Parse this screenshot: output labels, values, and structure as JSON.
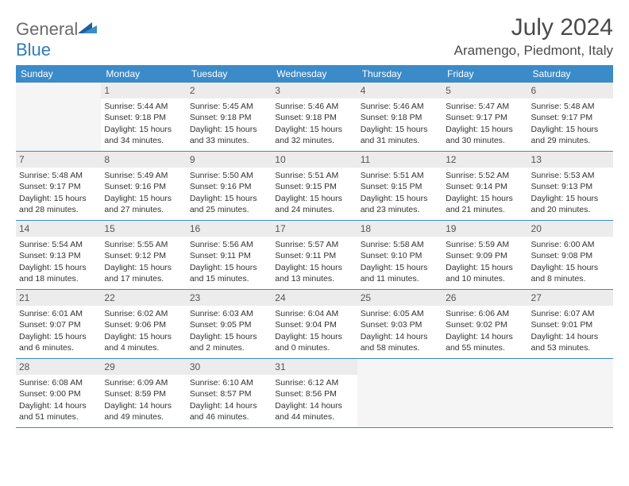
{
  "brand": {
    "name_gray": "General",
    "name_blue": "Blue"
  },
  "title": "July 2024",
  "location": "Aramengo, Piedmont, Italy",
  "colors": {
    "header_bar": "#3b8bc9",
    "daynum_bg": "#ececec",
    "week_border": "#3b8bc9",
    "text": "#333333",
    "title_text": "#4a4a4a",
    "logo_gray": "#6b6b6b",
    "logo_blue": "#2f7bbf",
    "empty_bg": "#f5f5f5"
  },
  "weekdays": [
    "Sunday",
    "Monday",
    "Tuesday",
    "Wednesday",
    "Thursday",
    "Friday",
    "Saturday"
  ],
  "weeks": [
    [
      null,
      {
        "n": "1",
        "sunrise": "Sunrise: 5:44 AM",
        "sunset": "Sunset: 9:18 PM",
        "d1": "Daylight: 15 hours",
        "d2": "and 34 minutes."
      },
      {
        "n": "2",
        "sunrise": "Sunrise: 5:45 AM",
        "sunset": "Sunset: 9:18 PM",
        "d1": "Daylight: 15 hours",
        "d2": "and 33 minutes."
      },
      {
        "n": "3",
        "sunrise": "Sunrise: 5:46 AM",
        "sunset": "Sunset: 9:18 PM",
        "d1": "Daylight: 15 hours",
        "d2": "and 32 minutes."
      },
      {
        "n": "4",
        "sunrise": "Sunrise: 5:46 AM",
        "sunset": "Sunset: 9:18 PM",
        "d1": "Daylight: 15 hours",
        "d2": "and 31 minutes."
      },
      {
        "n": "5",
        "sunrise": "Sunrise: 5:47 AM",
        "sunset": "Sunset: 9:17 PM",
        "d1": "Daylight: 15 hours",
        "d2": "and 30 minutes."
      },
      {
        "n": "6",
        "sunrise": "Sunrise: 5:48 AM",
        "sunset": "Sunset: 9:17 PM",
        "d1": "Daylight: 15 hours",
        "d2": "and 29 minutes."
      }
    ],
    [
      {
        "n": "7",
        "sunrise": "Sunrise: 5:48 AM",
        "sunset": "Sunset: 9:17 PM",
        "d1": "Daylight: 15 hours",
        "d2": "and 28 minutes."
      },
      {
        "n": "8",
        "sunrise": "Sunrise: 5:49 AM",
        "sunset": "Sunset: 9:16 PM",
        "d1": "Daylight: 15 hours",
        "d2": "and 27 minutes."
      },
      {
        "n": "9",
        "sunrise": "Sunrise: 5:50 AM",
        "sunset": "Sunset: 9:16 PM",
        "d1": "Daylight: 15 hours",
        "d2": "and 25 minutes."
      },
      {
        "n": "10",
        "sunrise": "Sunrise: 5:51 AM",
        "sunset": "Sunset: 9:15 PM",
        "d1": "Daylight: 15 hours",
        "d2": "and 24 minutes."
      },
      {
        "n": "11",
        "sunrise": "Sunrise: 5:51 AM",
        "sunset": "Sunset: 9:15 PM",
        "d1": "Daylight: 15 hours",
        "d2": "and 23 minutes."
      },
      {
        "n": "12",
        "sunrise": "Sunrise: 5:52 AM",
        "sunset": "Sunset: 9:14 PM",
        "d1": "Daylight: 15 hours",
        "d2": "and 21 minutes."
      },
      {
        "n": "13",
        "sunrise": "Sunrise: 5:53 AM",
        "sunset": "Sunset: 9:13 PM",
        "d1": "Daylight: 15 hours",
        "d2": "and 20 minutes."
      }
    ],
    [
      {
        "n": "14",
        "sunrise": "Sunrise: 5:54 AM",
        "sunset": "Sunset: 9:13 PM",
        "d1": "Daylight: 15 hours",
        "d2": "and 18 minutes."
      },
      {
        "n": "15",
        "sunrise": "Sunrise: 5:55 AM",
        "sunset": "Sunset: 9:12 PM",
        "d1": "Daylight: 15 hours",
        "d2": "and 17 minutes."
      },
      {
        "n": "16",
        "sunrise": "Sunrise: 5:56 AM",
        "sunset": "Sunset: 9:11 PM",
        "d1": "Daylight: 15 hours",
        "d2": "and 15 minutes."
      },
      {
        "n": "17",
        "sunrise": "Sunrise: 5:57 AM",
        "sunset": "Sunset: 9:11 PM",
        "d1": "Daylight: 15 hours",
        "d2": "and 13 minutes."
      },
      {
        "n": "18",
        "sunrise": "Sunrise: 5:58 AM",
        "sunset": "Sunset: 9:10 PM",
        "d1": "Daylight: 15 hours",
        "d2": "and 11 minutes."
      },
      {
        "n": "19",
        "sunrise": "Sunrise: 5:59 AM",
        "sunset": "Sunset: 9:09 PM",
        "d1": "Daylight: 15 hours",
        "d2": "and 10 minutes."
      },
      {
        "n": "20",
        "sunrise": "Sunrise: 6:00 AM",
        "sunset": "Sunset: 9:08 PM",
        "d1": "Daylight: 15 hours",
        "d2": "and 8 minutes."
      }
    ],
    [
      {
        "n": "21",
        "sunrise": "Sunrise: 6:01 AM",
        "sunset": "Sunset: 9:07 PM",
        "d1": "Daylight: 15 hours",
        "d2": "and 6 minutes."
      },
      {
        "n": "22",
        "sunrise": "Sunrise: 6:02 AM",
        "sunset": "Sunset: 9:06 PM",
        "d1": "Daylight: 15 hours",
        "d2": "and 4 minutes."
      },
      {
        "n": "23",
        "sunrise": "Sunrise: 6:03 AM",
        "sunset": "Sunset: 9:05 PM",
        "d1": "Daylight: 15 hours",
        "d2": "and 2 minutes."
      },
      {
        "n": "24",
        "sunrise": "Sunrise: 6:04 AM",
        "sunset": "Sunset: 9:04 PM",
        "d1": "Daylight: 15 hours",
        "d2": "and 0 minutes."
      },
      {
        "n": "25",
        "sunrise": "Sunrise: 6:05 AM",
        "sunset": "Sunset: 9:03 PM",
        "d1": "Daylight: 14 hours",
        "d2": "and 58 minutes."
      },
      {
        "n": "26",
        "sunrise": "Sunrise: 6:06 AM",
        "sunset": "Sunset: 9:02 PM",
        "d1": "Daylight: 14 hours",
        "d2": "and 55 minutes."
      },
      {
        "n": "27",
        "sunrise": "Sunrise: 6:07 AM",
        "sunset": "Sunset: 9:01 PM",
        "d1": "Daylight: 14 hours",
        "d2": "and 53 minutes."
      }
    ],
    [
      {
        "n": "28",
        "sunrise": "Sunrise: 6:08 AM",
        "sunset": "Sunset: 9:00 PM",
        "d1": "Daylight: 14 hours",
        "d2": "and 51 minutes."
      },
      {
        "n": "29",
        "sunrise": "Sunrise: 6:09 AM",
        "sunset": "Sunset: 8:59 PM",
        "d1": "Daylight: 14 hours",
        "d2": "and 49 minutes."
      },
      {
        "n": "30",
        "sunrise": "Sunrise: 6:10 AM",
        "sunset": "Sunset: 8:57 PM",
        "d1": "Daylight: 14 hours",
        "d2": "and 46 minutes."
      },
      {
        "n": "31",
        "sunrise": "Sunrise: 6:12 AM",
        "sunset": "Sunset: 8:56 PM",
        "d1": "Daylight: 14 hours",
        "d2": "and 44 minutes."
      },
      null,
      null,
      null
    ]
  ]
}
